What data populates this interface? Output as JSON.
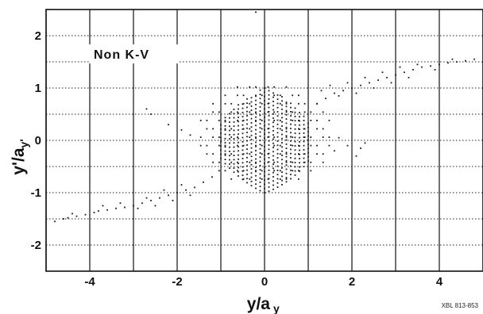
{
  "chart_data": {
    "type": "scatter",
    "title": "",
    "xlabel": {
      "main": "y/a",
      "sub": "y"
    },
    "ylabel": {
      "main": "y'/a",
      "sub": "y'"
    },
    "xlim": [
      -5.0,
      5.0
    ],
    "ylim": [
      -2.5,
      2.5
    ],
    "x_ticks": [
      {
        "value": -4,
        "label": "-4"
      },
      {
        "value": -2,
        "label": "-2"
      },
      {
        "value": 0,
        "label": "0"
      },
      {
        "value": 2,
        "label": "2"
      },
      {
        "value": 4,
        "label": "4"
      }
    ],
    "y_ticks": [
      {
        "value": 2,
        "label": "2"
      },
      {
        "value": 1,
        "label": "1"
      },
      {
        "value": 0,
        "label": "0"
      },
      {
        "value": -1,
        "label": "-1"
      },
      {
        "value": -2,
        "label": "-2"
      }
    ],
    "grid": {
      "vertical_step": 1,
      "vertical_style": "solid",
      "horizontal_step": 0.5,
      "horizontal_style": "dotted"
    },
    "annotation": "Non K-V",
    "figure_tag": "XBL 813-853",
    "point_color": "#1a1a1a",
    "series": [
      {
        "points": [
          [
            -4.8,
            -1.55
          ],
          [
            -4.6,
            -1.5
          ],
          [
            -4.5,
            -1.48
          ],
          [
            -4.3,
            -1.45
          ],
          [
            -4.1,
            -1.42
          ],
          [
            -3.9,
            -1.38
          ],
          [
            -3.8,
            -1.35
          ],
          [
            -3.6,
            -1.33
          ],
          [
            -3.4,
            -1.3
          ],
          [
            -3.2,
            -1.28
          ],
          [
            -3.0,
            -1.25
          ],
          [
            -2.8,
            -1.2
          ],
          [
            -2.6,
            -1.15
          ],
          [
            -2.4,
            -1.1
          ],
          [
            -2.2,
            -1.05
          ],
          [
            -2.0,
            -1.0
          ],
          [
            -1.8,
            -0.95
          ],
          [
            -1.6,
            -0.9
          ],
          [
            -1.4,
            -0.8
          ],
          [
            -1.2,
            -0.7
          ],
          [
            -4.4,
            -1.4
          ],
          [
            -3.7,
            -1.25
          ],
          [
            -3.3,
            -1.2
          ],
          [
            -2.9,
            -1.3
          ],
          [
            -2.7,
            -1.1
          ],
          [
            -2.5,
            -1.25
          ],
          [
            -2.3,
            -0.95
          ],
          [
            -2.1,
            -1.15
          ],
          [
            -1.9,
            -0.85
          ],
          [
            -1.7,
            -1.05
          ],
          [
            1.2,
            0.7
          ],
          [
            1.4,
            0.8
          ],
          [
            1.6,
            0.9
          ],
          [
            1.8,
            0.95
          ],
          [
            2.0,
            1.0
          ],
          [
            2.2,
            1.05
          ],
          [
            2.4,
            1.1
          ],
          [
            2.6,
            1.15
          ],
          [
            2.8,
            1.2
          ],
          [
            3.0,
            1.25
          ],
          [
            3.2,
            1.3
          ],
          [
            3.4,
            1.35
          ],
          [
            3.6,
            1.4
          ],
          [
            3.8,
            1.42
          ],
          [
            4.0,
            1.45
          ],
          [
            4.2,
            1.48
          ],
          [
            4.4,
            1.5
          ],
          [
            4.6,
            1.52
          ],
          [
            4.8,
            1.55
          ],
          [
            1.3,
            0.95
          ],
          [
            1.5,
            1.05
          ],
          [
            1.7,
            0.85
          ],
          [
            1.9,
            1.1
          ],
          [
            2.1,
            0.9
          ],
          [
            2.3,
            1.2
          ],
          [
            2.5,
            1.0
          ],
          [
            2.7,
            1.3
          ],
          [
            2.9,
            1.1
          ],
          [
            3.1,
            1.4
          ],
          [
            3.3,
            1.2
          ],
          [
            3.5,
            1.45
          ],
          [
            3.9,
            1.35
          ],
          [
            4.3,
            1.55
          ],
          [
            -2.7,
            0.6
          ],
          [
            -2.6,
            0.5
          ],
          [
            -2.2,
            0.3
          ],
          [
            -1.9,
            0.2
          ],
          [
            -1.7,
            0.1
          ],
          [
            1.6,
            -0.2
          ],
          [
            1.9,
            -0.1
          ],
          [
            2.1,
            -0.3
          ],
          [
            2.2,
            -0.15
          ],
          [
            2.3,
            -0.05
          ],
          [
            1.7,
            0.05
          ],
          [
            -0.2,
            2.45
          ]
        ],
        "core": {
          "x_range": [
            -1.0,
            1.0
          ],
          "column_step": 0.1,
          "row_step": 0.08,
          "y_extent": {
            "left": 0.6,
            "center": 0.95,
            "right": 0.7
          }
        },
        "halo": {
          "x_range": [
            -1.6,
            1.6
          ],
          "y_range": [
            -0.9,
            1.1
          ],
          "column_step": 0.14,
          "row_step": 0.16
        }
      }
    ]
  }
}
